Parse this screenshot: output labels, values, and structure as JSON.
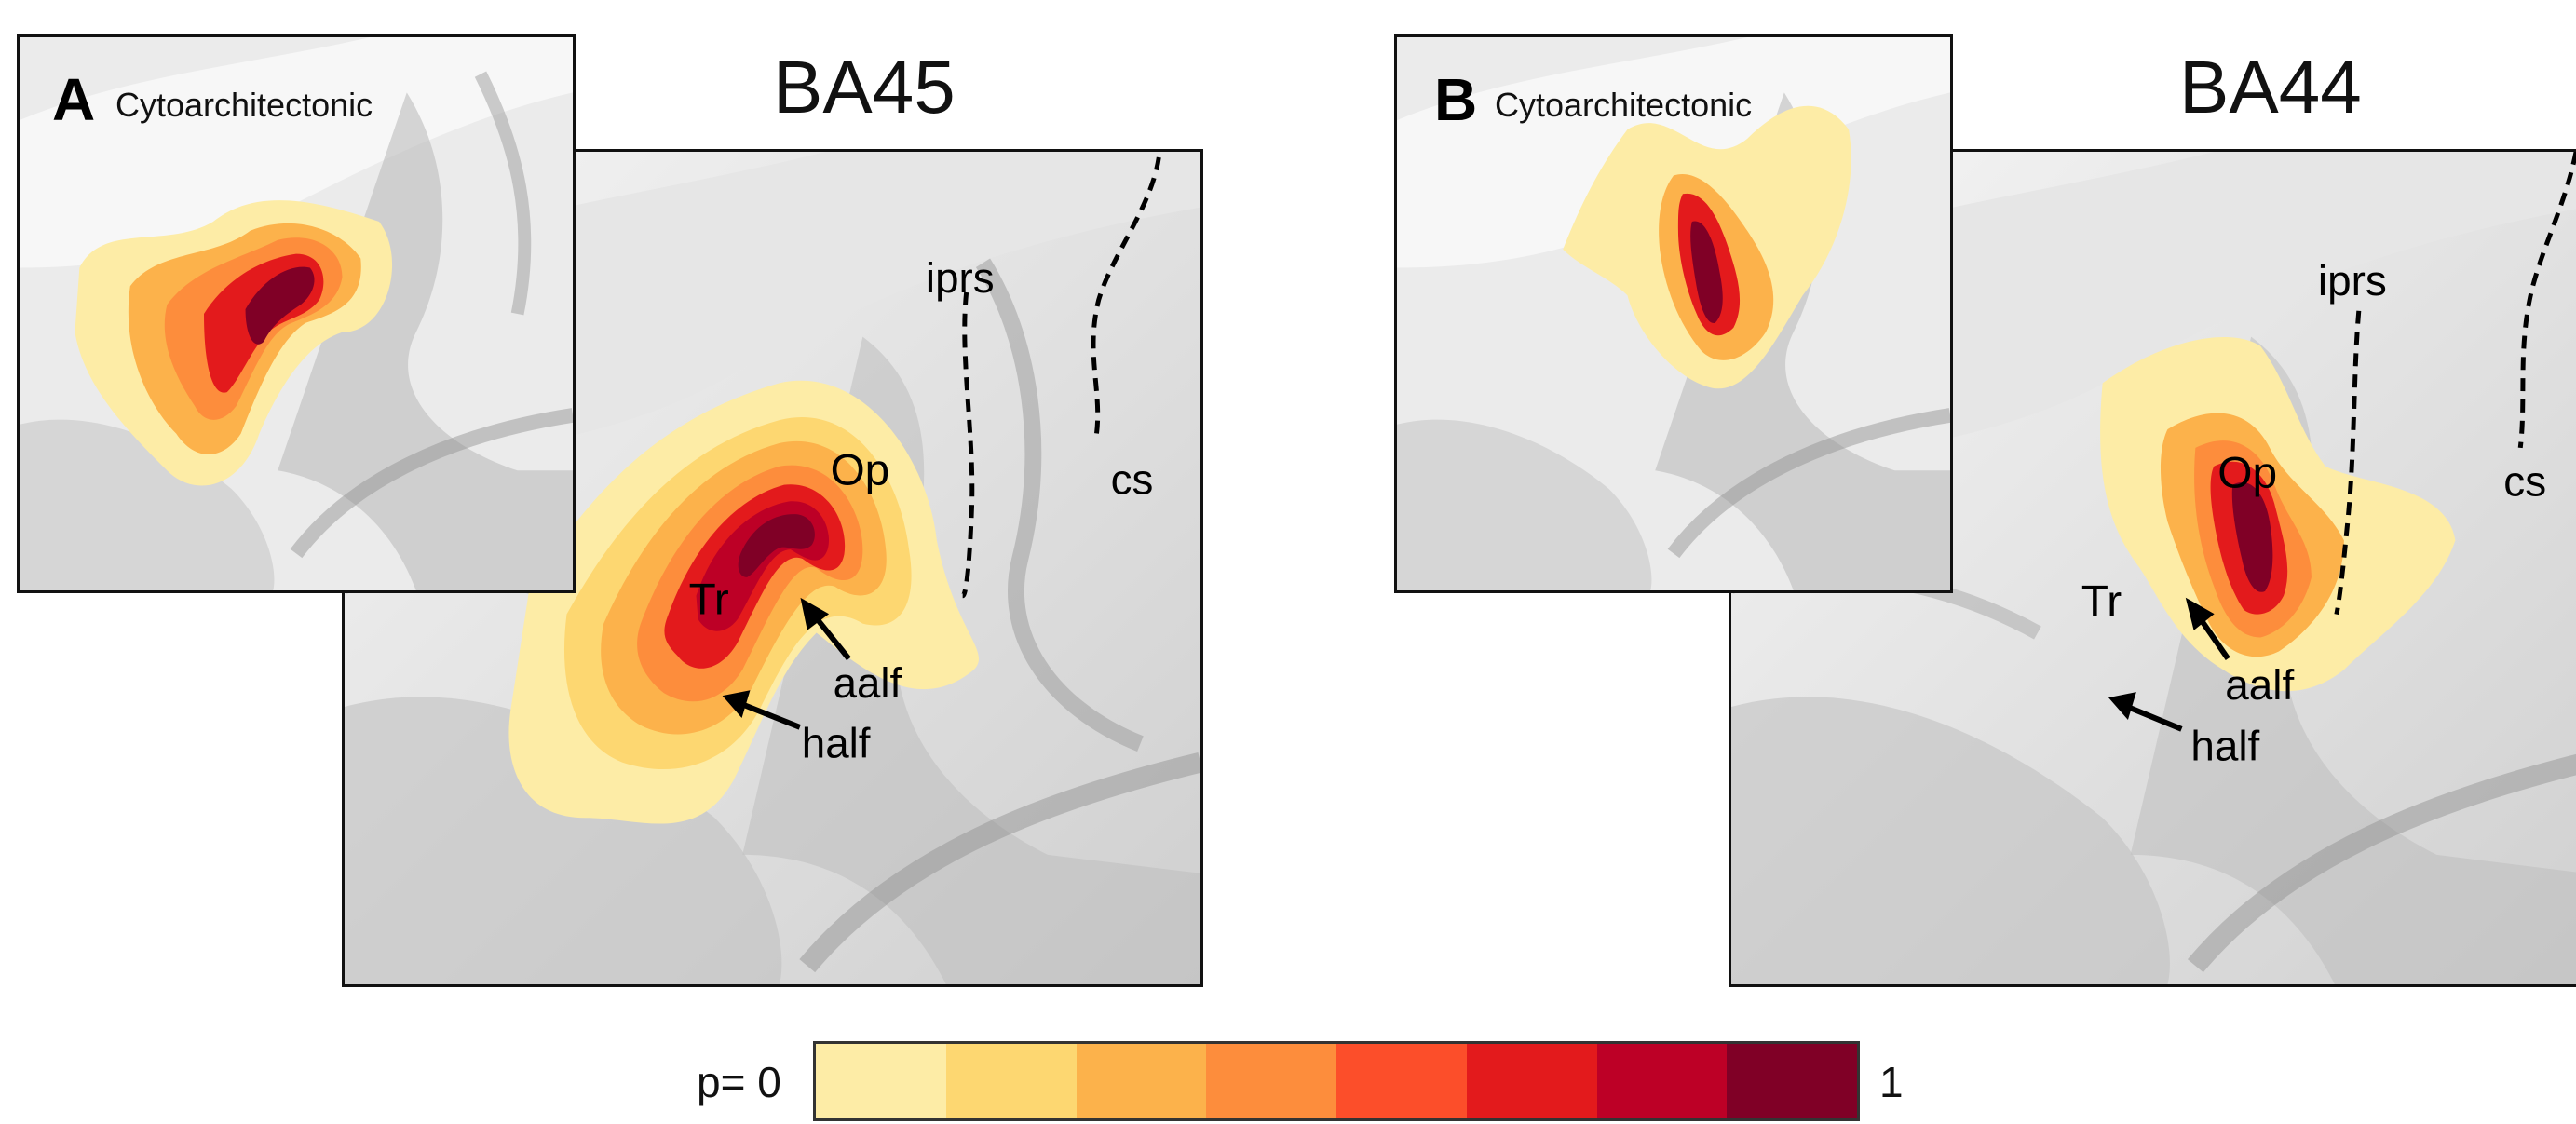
{
  "panels": [
    {
      "letter": "A",
      "subtitle": "Cytoarchitectonic",
      "title": "BA45",
      "labels": {
        "iprs": "iprs",
        "cs": "cs",
        "op": "Op",
        "tr": "Tr",
        "aalf": "aalf",
        "half": "half"
      }
    },
    {
      "letter": "B",
      "subtitle": "Cytoarchitectonic",
      "title": "BA44",
      "labels": {
        "iprs": "iprs",
        "cs": "cs",
        "op": "Op",
        "tr": "Tr",
        "aalf": "aalf",
        "half": "half"
      }
    }
  ],
  "scale": {
    "min_label": "p= 0",
    "max_label": "1",
    "colors": [
      "#fdeca6",
      "#fdd771",
      "#fcb24b",
      "#fd8d3c",
      "#fc4e2a",
      "#e31a1c",
      "#bd0026",
      "#800026"
    ]
  }
}
